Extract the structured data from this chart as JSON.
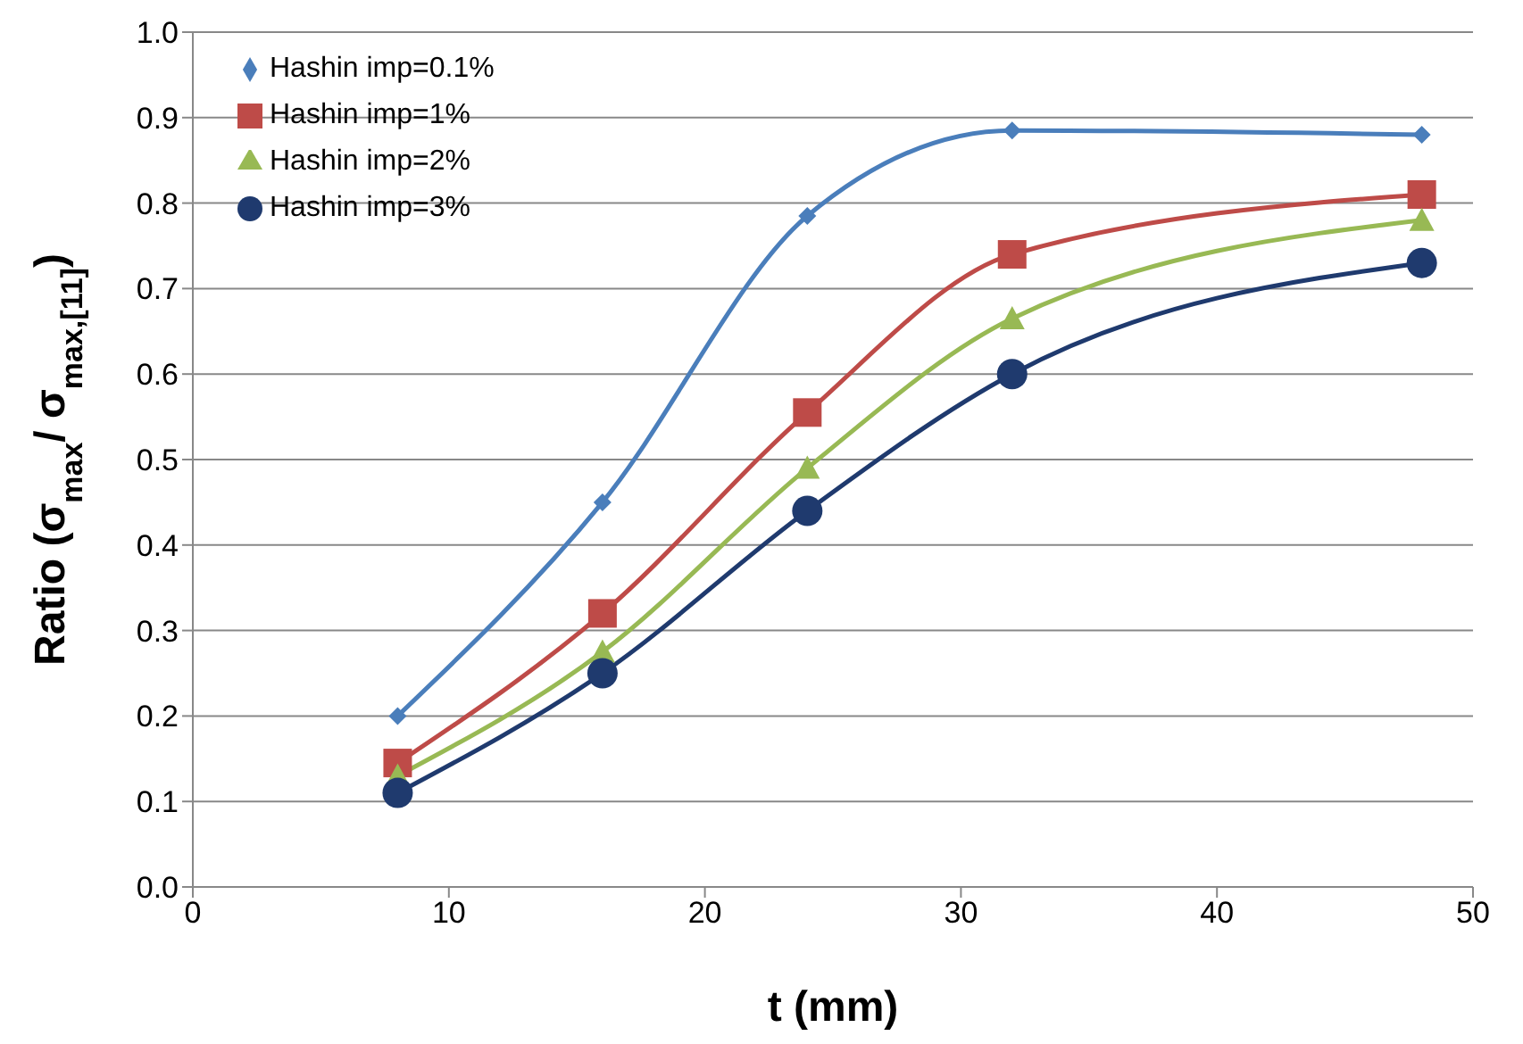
{
  "chart_data": {
    "type": "line",
    "xlabel": "t (mm)",
    "ylabel": "Ratio (σ$_{max}$/ σ$_{max,[11]}$)",
    "x": [
      8,
      16,
      24,
      32,
      48
    ],
    "series": [
      {
        "name": "Hashin imp=0.1%",
        "color": "#4a7ebb",
        "marker": "diamond",
        "values": [
          0.2,
          0.45,
          0.785,
          0.885,
          0.88
        ]
      },
      {
        "name": "Hashin imp=1%",
        "color": "#be4b48",
        "marker": "square",
        "values": [
          0.145,
          0.32,
          0.555,
          0.74,
          0.81
        ]
      },
      {
        "name": "Hashin imp=2%",
        "color": "#98b954",
        "marker": "triangle",
        "values": [
          0.13,
          0.275,
          0.49,
          0.665,
          0.78
        ]
      },
      {
        "name": "Hashin imp=3%",
        "color": "#1f3a6e",
        "marker": "circle",
        "values": [
          0.11,
          0.25,
          0.44,
          0.6,
          0.73
        ]
      }
    ],
    "xlim": [
      0,
      50
    ],
    "xticks": [
      0,
      10,
      20,
      30,
      40,
      50
    ],
    "ylim": [
      0,
      1
    ],
    "yticks": [
      {
        "value": 0,
        "label": "0.0"
      },
      0.1,
      0.2,
      0.3,
      0.4,
      0.5,
      0.6,
      0.7,
      0.8,
      0.9,
      {
        "value": 1,
        "label": "1.0"
      }
    ],
    "grid": "y",
    "legend": "top left",
    "line_style": "solid"
  }
}
